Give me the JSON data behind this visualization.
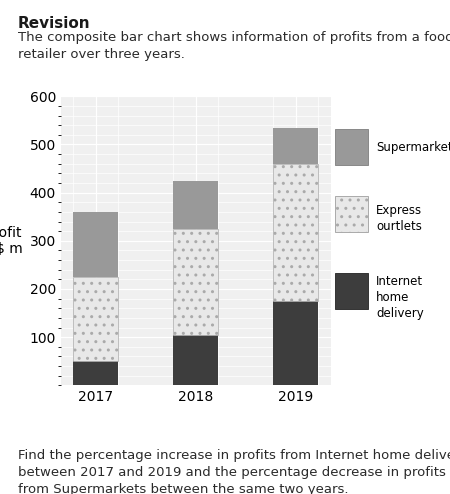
{
  "title": "Revision",
  "subtitle": "The composite bar chart shows information of profits from a food\nretailer over three years.",
  "footer": "Find the percentage increase in profits from Internet home delivery\nbetween 2017 and 2019 and the percentage decrease in profits\nfrom Supermarkets between the same two years.",
  "years": [
    "2017",
    "2018",
    "2019"
  ],
  "internet_home_delivery": [
    50,
    105,
    175
  ],
  "express_outlets": [
    175,
    220,
    285
  ],
  "supermarkets": [
    135,
    100,
    75
  ],
  "ylabel": "Profit\n/ $ m",
  "ylim": [
    0,
    600
  ],
  "yticks": [
    100,
    200,
    300,
    400,
    500,
    600
  ],
  "color_internet": "#3d3d3d",
  "color_express": "#e8e8e8",
  "color_supermarkets": "#999999",
  "hatch_express": "..",
  "background_chart": "#f0f0f0",
  "background_page": "#ffffff",
  "bar_width": 0.45
}
